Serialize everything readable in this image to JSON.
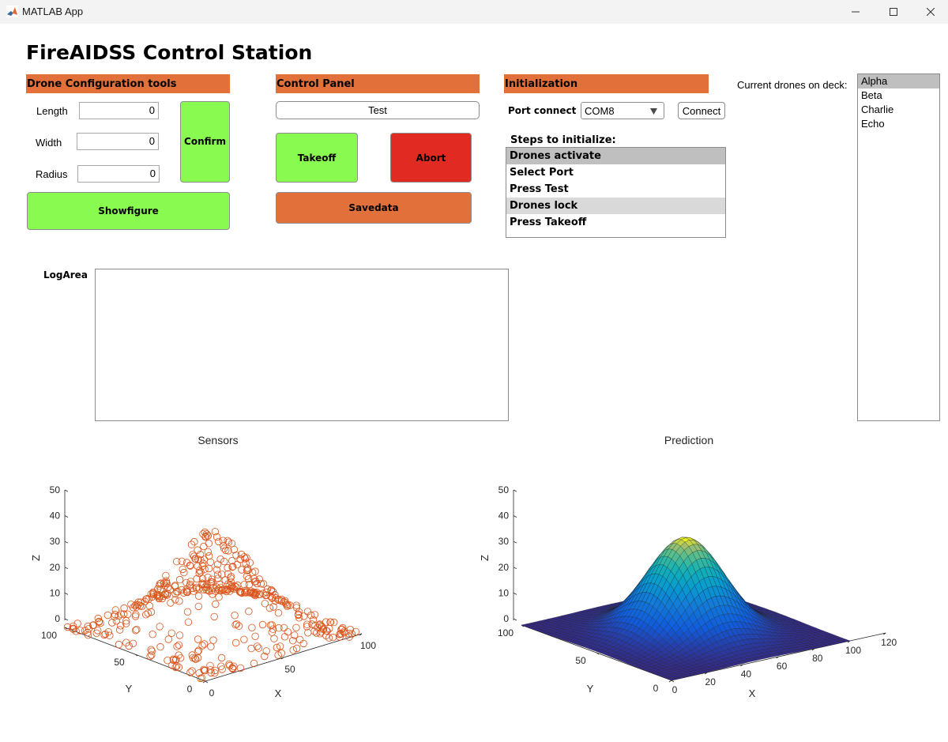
{
  "window": {
    "title": "MATLAB App",
    "controls": [
      "minimize",
      "maximize",
      "close"
    ]
  },
  "app": {
    "title": "FireAIDSS Control Station"
  },
  "drone_config": {
    "header": "Drone Configuration tools",
    "length_label": "Length",
    "length_value": "0",
    "width_label": "Width",
    "width_value": "0",
    "radius_label": "Radius",
    "radius_value": "0",
    "confirm_label": "Confirm",
    "showfigure_label": "Showfigure"
  },
  "control_panel": {
    "header": "Control Panel",
    "test_label": "Test",
    "takeoff_label": "Takeoff",
    "abort_label": "Abort",
    "savedata_label": "Savedata"
  },
  "initialization": {
    "header": "Initialization",
    "port_label": "Port connect",
    "port_value": "COM8",
    "connect_label": "Connect",
    "steps_label": "Steps to initialize:",
    "steps": [
      "Drones activate",
      "Select Port",
      "Press Test",
      "Drones lock",
      "Press Takeoff"
    ]
  },
  "drones": {
    "label": "Current drones on deck:",
    "items": [
      "Alpha",
      "Beta",
      "Charlie",
      "Echo"
    ]
  },
  "log": {
    "label": "LogArea",
    "content": ""
  },
  "colors": {
    "header": "#e2703b",
    "green": "#88fa50",
    "red": "#e12b22",
    "marker": "#d95319"
  },
  "chart_data": [
    {
      "type": "scatter",
      "title": "Sensors",
      "xlabel": "X",
      "ylabel": "Y",
      "zlabel": "Z",
      "xlim": [
        0,
        100
      ],
      "ylim": [
        0,
        100
      ],
      "zlim": [
        0,
        50
      ],
      "xticks": [
        "0",
        "50",
        "100"
      ],
      "yticks": [
        "0",
        "50",
        "100"
      ],
      "zticks": [
        "0",
        "10",
        "20",
        "30",
        "40",
        "50"
      ],
      "marker": "circle",
      "description_points": "approx. 500 sensor readings sampled over a 100x100 grid from a Gaussian-shaped field peaking near z=38 around x=50, y=50"
    },
    {
      "type": "surface",
      "title": "Prediction",
      "xlabel": "X",
      "ylabel": "Y",
      "zlabel": "Z",
      "xlim": [
        0,
        120
      ],
      "ylim": [
        0,
        100
      ],
      "zlim": [
        0,
        50
      ],
      "xticks": [
        "0",
        "20",
        "40",
        "60",
        "80",
        "100",
        "120"
      ],
      "yticks": [
        "0",
        "50",
        "100"
      ],
      "zticks": [
        "0",
        "10",
        "20",
        "30",
        "40",
        "50"
      ],
      "peak": {
        "x": 50,
        "y": 50,
        "z": 37
      },
      "colormap": "parula"
    }
  ]
}
